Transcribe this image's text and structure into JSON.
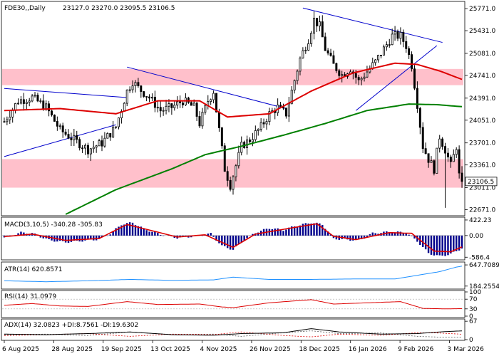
{
  "chart_data": {
    "type": "line",
    "symbol": "FDE30",
    "timeframe": "Daily",
    "header": {
      "title": "FDE30,,Daily",
      "ohlc": "23127.0 23270.0 23095.5 23106.5"
    },
    "price_axis_ticks": [
      25771.0,
      25431.0,
      25081.0,
      24741.0,
      24391.0,
      24051.0,
      23701.0,
      23361.0,
      23011.0,
      22671.0
    ],
    "price_axis_labels": [
      "25771.0",
      "25431.0",
      "25081.0",
      "24741.0",
      "24391.0",
      "24051.0",
      "23701.0",
      "23361.0",
      "23011.0",
      "22671.0"
    ],
    "price_ylim": [
      22600,
      25860
    ],
    "last_price": 23106.5,
    "last_price_label": "23106.5",
    "x_ticks": [
      "6 Aug 2025",
      "28 Aug 2025",
      "19 Sep 2025",
      "13 Oct 2025",
      "4 Nov 2025",
      "26 Nov 2025",
      "18 Dec 2025",
      "16 Jan 2026",
      "9 Feb 2026",
      "3 Mar 2026"
    ],
    "zones": [
      {
        "from": 24591.0,
        "to": 24841.0,
        "color": "#ffc0cb"
      },
      {
        "from": 23011.0,
        "to": 23451.0,
        "color": "#ffc0cb"
      }
    ],
    "close_keypoints": [
      [
        0,
        24030
      ],
      [
        5,
        24350
      ],
      [
        10,
        24400
      ],
      [
        15,
        24250
      ],
      [
        20,
        23900
      ],
      [
        25,
        23750
      ],
      [
        30,
        23600
      ],
      [
        35,
        23700
      ],
      [
        40,
        23950
      ],
      [
        44,
        24500
      ],
      [
        46,
        24650
      ],
      [
        48,
        24550
      ],
      [
        52,
        24400
      ],
      [
        56,
        24200
      ],
      [
        60,
        24250
      ],
      [
        64,
        24350
      ],
      [
        68,
        24250
      ],
      [
        70,
        24000
      ],
      [
        73,
        24350
      ],
      [
        75,
        24500
      ],
      [
        77,
        23900
      ],
      [
        79,
        23300
      ],
      [
        81,
        23050
      ],
      [
        83,
        23350
      ],
      [
        85,
        23650
      ],
      [
        88,
        23750
      ],
      [
        92,
        23950
      ],
      [
        95,
        24150
      ],
      [
        98,
        24250
      ],
      [
        101,
        24150
      ],
      [
        103,
        24500
      ],
      [
        106,
        25000
      ],
      [
        109,
        25300
      ],
      [
        111,
        25600
      ],
      [
        113,
        25500
      ],
      [
        115,
        25150
      ],
      [
        118,
        24900
      ],
      [
        121,
        24750
      ],
      [
        124,
        24850
      ],
      [
        127,
        24650
      ],
      [
        130,
        24800
      ],
      [
        133,
        24950
      ],
      [
        136,
        25150
      ],
      [
        139,
        25350
      ],
      [
        142,
        25350
      ],
      [
        144,
        25200
      ],
      [
        146,
        24900
      ],
      [
        148,
        24300
      ],
      [
        150,
        23650
      ],
      [
        152,
        23450
      ],
      [
        154,
        23300
      ],
      [
        156,
        23800
      ],
      [
        158,
        23600
      ],
      [
        160,
        23350
      ],
      [
        162,
        23650
      ],
      [
        163,
        23200
      ],
      [
        164,
        23106.5
      ]
    ],
    "ma_fast_keypoints": [
      [
        0,
        24200
      ],
      [
        20,
        24230
      ],
      [
        40,
        24150
      ],
      [
        55,
        24350
      ],
      [
        70,
        24350
      ],
      [
        80,
        24100
      ],
      [
        95,
        24150
      ],
      [
        110,
        24500
      ],
      [
        125,
        24780
      ],
      [
        140,
        24930
      ],
      [
        148,
        24910
      ],
      [
        156,
        24810
      ],
      [
        164,
        24680
      ]
    ],
    "ma_slow_keypoints": [
      [
        22,
        22600
      ],
      [
        40,
        22980
      ],
      [
        60,
        23300
      ],
      [
        72,
        23520
      ],
      [
        85,
        23650
      ],
      [
        100,
        23820
      ],
      [
        115,
        24000
      ],
      [
        130,
        24200
      ],
      [
        145,
        24300
      ],
      [
        155,
        24290
      ],
      [
        164,
        24260
      ]
    ],
    "trendlines": [
      {
        "from": [
          0,
          24540
        ],
        "to": [
          44,
          24400
        ]
      },
      {
        "from": [
          44,
          24870
        ],
        "to": [
          101,
          24230
        ]
      },
      {
        "from": [
          0,
          23490
        ],
        "to": [
          40,
          23980
        ]
      },
      {
        "from": [
          107,
          25780
        ],
        "to": [
          157,
          25250
        ]
      },
      {
        "from": [
          126,
          24200
        ],
        "to": [
          155,
          25200
        ]
      }
    ],
    "macd": {
      "title": "MACD(3,10,5) -340.28 -305.83",
      "axis_labels": [
        "422.23",
        "0.00",
        "-586.4"
      ],
      "axis_values": [
        422.23,
        0.0,
        -586.4
      ],
      "ylim": [
        -620,
        460
      ],
      "hist_keypoints": [
        [
          0,
          -50
        ],
        [
          6,
          80
        ],
        [
          10,
          60
        ],
        [
          16,
          -120
        ],
        [
          22,
          -180
        ],
        [
          28,
          -140
        ],
        [
          34,
          -100
        ],
        [
          38,
          50
        ],
        [
          42,
          300
        ],
        [
          46,
          350
        ],
        [
          50,
          180
        ],
        [
          56,
          30
        ],
        [
          62,
          -60
        ],
        [
          68,
          -20
        ],
        [
          74,
          50
        ],
        [
          78,
          -280
        ],
        [
          82,
          -380
        ],
        [
          86,
          -120
        ],
        [
          90,
          80
        ],
        [
          95,
          200
        ],
        [
          100,
          150
        ],
        [
          104,
          250
        ],
        [
          110,
          350
        ],
        [
          114,
          300
        ],
        [
          118,
          -80
        ],
        [
          124,
          -120
        ],
        [
          128,
          -100
        ],
        [
          132,
          60
        ],
        [
          138,
          100
        ],
        [
          144,
          80
        ],
        [
          148,
          -150
        ],
        [
          152,
          -480
        ],
        [
          156,
          -560
        ],
        [
          160,
          -500
        ],
        [
          164,
          -340
        ]
      ],
      "signal_keypoints": [
        [
          0,
          -30
        ],
        [
          10,
          40
        ],
        [
          22,
          -130
        ],
        [
          34,
          -80
        ],
        [
          44,
          300
        ],
        [
          52,
          150
        ],
        [
          62,
          -40
        ],
        [
          72,
          20
        ],
        [
          82,
          -320
        ],
        [
          90,
          40
        ],
        [
          104,
          220
        ],
        [
          112,
          320
        ],
        [
          118,
          -20
        ],
        [
          126,
          -110
        ],
        [
          138,
          80
        ],
        [
          146,
          60
        ],
        [
          154,
          -420
        ],
        [
          160,
          -440
        ],
        [
          164,
          -306
        ]
      ]
    },
    "atr": {
      "title": "ATR(14) 620.8571",
      "axis_labels": [
        "647.7089",
        "184.2554"
      ],
      "axis_values": [
        647.7089,
        184.2554
      ],
      "ylim": [
        150,
        680
      ],
      "keypoints": [
        [
          0,
          300
        ],
        [
          15,
          280
        ],
        [
          30,
          300
        ],
        [
          45,
          330
        ],
        [
          60,
          310
        ],
        [
          75,
          320
        ],
        [
          82,
          380
        ],
        [
          95,
          330
        ],
        [
          110,
          330
        ],
        [
          125,
          340
        ],
        [
          140,
          340
        ],
        [
          148,
          420
        ],
        [
          156,
          500
        ],
        [
          162,
          600
        ],
        [
          164,
          621
        ]
      ]
    },
    "rsi": {
      "title": "RSI(14) 31.0979",
      "axis_labels": [
        "100",
        "70",
        "30",
        "0"
      ],
      "axis_values": [
        100,
        70,
        30,
        0
      ],
      "ylim": [
        0,
        100
      ],
      "keypoints": [
        [
          0,
          45
        ],
        [
          10,
          52
        ],
        [
          20,
          42
        ],
        [
          30,
          40
        ],
        [
          44,
          60
        ],
        [
          55,
          48
        ],
        [
          70,
          50
        ],
        [
          78,
          38
        ],
        [
          82,
          35
        ],
        [
          95,
          55
        ],
        [
          110,
          68
        ],
        [
          118,
          50
        ],
        [
          130,
          55
        ],
        [
          142,
          60
        ],
        [
          150,
          32
        ],
        [
          158,
          30
        ],
        [
          164,
          31
        ]
      ]
    },
    "adx": {
      "title": "ADX(14) 32.0823 +DI:8.7561 -DI:19.6302",
      "axis_labels": [
        "67",
        "0"
      ],
      "axis_values": [
        67,
        0
      ],
      "ylim": [
        0,
        70
      ],
      "adx_keypoints": [
        [
          0,
          20
        ],
        [
          15,
          18
        ],
        [
          30,
          22
        ],
        [
          45,
          28
        ],
        [
          60,
          18
        ],
        [
          75,
          16
        ],
        [
          85,
          22
        ],
        [
          100,
          25
        ],
        [
          110,
          40
        ],
        [
          120,
          28
        ],
        [
          135,
          20
        ],
        [
          148,
          22
        ],
        [
          156,
          28
        ],
        [
          164,
          32
        ]
      ],
      "pdi_keypoints": [
        [
          0,
          18
        ],
        [
          15,
          20
        ],
        [
          30,
          15
        ],
        [
          45,
          28
        ],
        [
          60,
          18
        ],
        [
          75,
          20
        ],
        [
          85,
          12
        ],
        [
          100,
          25
        ],
        [
          110,
          32
        ],
        [
          120,
          22
        ],
        [
          135,
          24
        ],
        [
          148,
          12
        ],
        [
          156,
          9
        ],
        [
          164,
          8.8
        ]
      ],
      "mdi_keypoints": [
        [
          0,
          15
        ],
        [
          15,
          18
        ],
        [
          30,
          22
        ],
        [
          45,
          12
        ],
        [
          60,
          20
        ],
        [
          75,
          18
        ],
        [
          85,
          28
        ],
        [
          100,
          15
        ],
        [
          110,
          10
        ],
        [
          120,
          20
        ],
        [
          135,
          16
        ],
        [
          148,
          25
        ],
        [
          156,
          24
        ],
        [
          164,
          19.6
        ]
      ]
    }
  }
}
